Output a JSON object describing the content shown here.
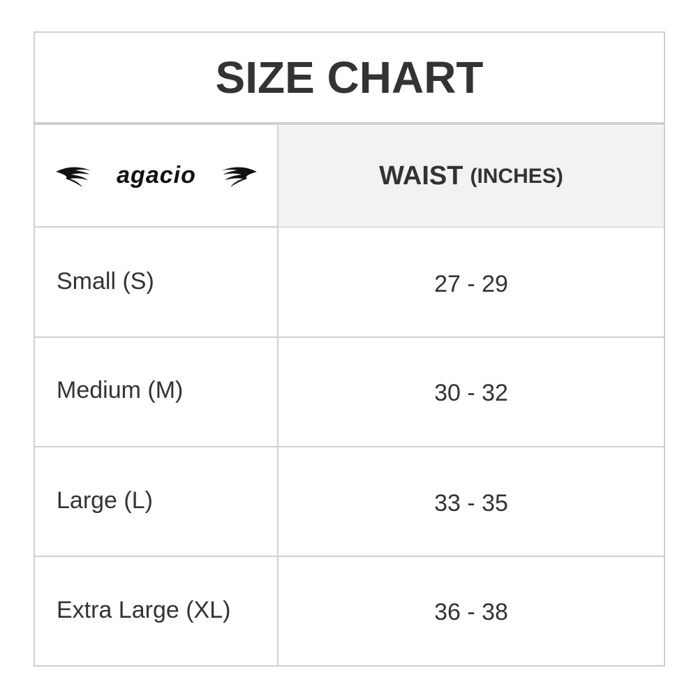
{
  "title": "SIZE CHART",
  "brand_logo": "agacio",
  "header": {
    "col2": "WAIST",
    "col2_unit": "(INCHES)"
  },
  "rows": [
    {
      "size": "Small (S)",
      "waist": "27 - 29"
    },
    {
      "size": "Medium (M)",
      "waist": "30 - 32"
    },
    {
      "size": "Large (L)",
      "waist": "33 - 35"
    },
    {
      "size": "Extra Large (XL)",
      "waist": "36 - 38"
    }
  ],
  "colors": {
    "text": "#333333",
    "border": "#cfcfcf",
    "header_bg": "#f2f2f2"
  }
}
